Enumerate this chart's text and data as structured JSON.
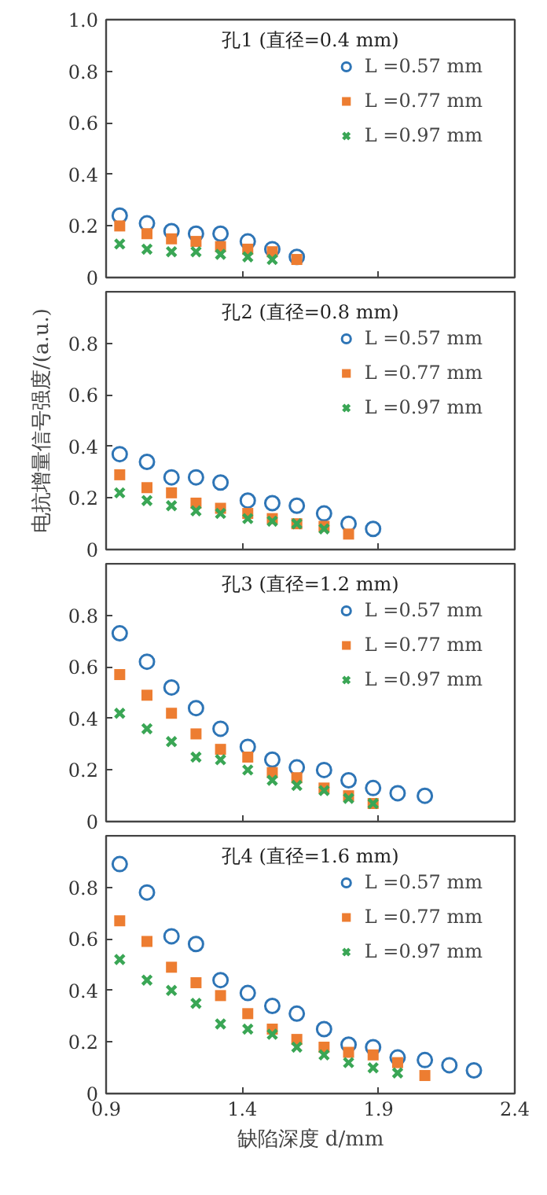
{
  "chart_data": [
    {
      "type": "scatter",
      "title": "孔1 (直径=0.4 mm)",
      "xlim": [
        0.9,
        2.4
      ],
      "xticks": [
        0.9,
        1.4,
        1.9,
        2.4
      ],
      "ylim": [
        0,
        1
      ],
      "yticks": [
        0,
        0.2,
        0.4,
        0.6,
        0.8,
        {
          "value": 1,
          "label": "1.0"
        }
      ],
      "tick_labels": "y",
      "legend": "top right",
      "grid": false,
      "series": [
        {
          "name": "L =0.57 mm",
          "color": "#2e75b6",
          "marker": "circle",
          "x": [
            0.95,
            1.05,
            1.14,
            1.23,
            1.32,
            1.42,
            1.51,
            1.6
          ],
          "values": [
            0.24,
            0.21,
            0.18,
            0.17,
            0.17,
            0.14,
            0.11,
            0.08
          ]
        },
        {
          "name": "L =0.77 mm",
          "color": "#ed7d31",
          "marker": "square",
          "x": [
            0.95,
            1.05,
            1.14,
            1.23,
            1.32,
            1.42,
            1.51,
            1.6
          ],
          "values": [
            0.2,
            0.17,
            0.15,
            0.14,
            0.12,
            0.11,
            0.1,
            0.07
          ]
        },
        {
          "name": "L =0.97 mm",
          "color": "#3aa655",
          "marker": "cross",
          "x": [
            0.95,
            1.05,
            1.14,
            1.23,
            1.32,
            1.42,
            1.51
          ],
          "values": [
            0.13,
            0.11,
            0.1,
            0.1,
            0.09,
            0.08,
            0.07
          ]
        }
      ]
    },
    {
      "type": "scatter",
      "title": "孔2 (直径=0.8 mm)",
      "ylabel": "电抗增量信号强度/(a.u.)",
      "xlim": [
        0.9,
        2.4
      ],
      "xticks": [
        0.9,
        1.4,
        1.9,
        2.4
      ],
      "ylim": [
        0,
        1
      ],
      "yticks": [
        0,
        0.2,
        0.4,
        0.6,
        0.8
      ],
      "tick_labels": "y",
      "legend": "top right",
      "grid": false,
      "series": [
        {
          "name": "L =0.57 mm",
          "color": "#2e75b6",
          "marker": "circle",
          "x": [
            0.95,
            1.05,
            1.14,
            1.23,
            1.32,
            1.42,
            1.51,
            1.6,
            1.7,
            1.79,
            1.88
          ],
          "values": [
            0.37,
            0.34,
            0.28,
            0.28,
            0.26,
            0.19,
            0.18,
            0.17,
            0.14,
            0.1,
            0.08
          ]
        },
        {
          "name": "L =0.77 mm",
          "color": "#ed7d31",
          "marker": "square",
          "x": [
            0.95,
            1.05,
            1.14,
            1.23,
            1.32,
            1.42,
            1.51,
            1.6,
            1.7,
            1.79
          ],
          "values": [
            0.29,
            0.24,
            0.22,
            0.18,
            0.16,
            0.14,
            0.12,
            0.1,
            0.09,
            0.06
          ]
        },
        {
          "name": "L =0.97 mm",
          "color": "#3aa655",
          "marker": "cross",
          "x": [
            0.95,
            1.05,
            1.14,
            1.23,
            1.32,
            1.42,
            1.51,
            1.6,
            1.7
          ],
          "values": [
            0.22,
            0.19,
            0.17,
            0.15,
            0.14,
            0.12,
            0.11,
            0.1,
            0.08
          ]
        }
      ]
    },
    {
      "type": "scatter",
      "title": "孔3 (直径=1.2 mm)",
      "xlim": [
        0.9,
        2.4
      ],
      "xticks": [
        0.9,
        1.4,
        1.9,
        2.4
      ],
      "ylim": [
        0,
        1
      ],
      "yticks": [
        0,
        0.2,
        0.4,
        0.6,
        0.8
      ],
      "tick_labels": "y",
      "legend": "top right",
      "grid": false,
      "series": [
        {
          "name": "L =0.57 mm",
          "color": "#2e75b6",
          "marker": "circle",
          "x": [
            0.95,
            1.05,
            1.14,
            1.23,
            1.32,
            1.42,
            1.51,
            1.6,
            1.7,
            1.79,
            1.88,
            1.97,
            2.07
          ],
          "values": [
            0.73,
            0.62,
            0.52,
            0.44,
            0.36,
            0.29,
            0.24,
            0.21,
            0.2,
            0.16,
            0.13,
            0.11,
            0.1
          ]
        },
        {
          "name": "L =0.77 mm",
          "color": "#ed7d31",
          "marker": "square",
          "x": [
            0.95,
            1.05,
            1.14,
            1.23,
            1.32,
            1.42,
            1.51,
            1.6,
            1.7,
            1.79,
            1.88
          ],
          "values": [
            0.57,
            0.49,
            0.42,
            0.34,
            0.28,
            0.25,
            0.19,
            0.17,
            0.13,
            0.1,
            0.07
          ]
        },
        {
          "name": "L =0.97 mm",
          "color": "#3aa655",
          "marker": "cross",
          "x": [
            0.95,
            1.05,
            1.14,
            1.23,
            1.32,
            1.42,
            1.51,
            1.6,
            1.7,
            1.79,
            1.88
          ],
          "values": [
            0.42,
            0.36,
            0.31,
            0.25,
            0.24,
            0.2,
            0.16,
            0.14,
            0.12,
            0.09,
            0.07
          ]
        }
      ]
    },
    {
      "type": "scatter",
      "title": "孔4 (直径=1.6 mm)",
      "xlabel": "缺陷深度 d/mm",
      "xlim": [
        0.9,
        2.4
      ],
      "xticks": [
        0.9,
        1.4,
        1.9,
        2.4
      ],
      "ylim": [
        0,
        1
      ],
      "yticks": [
        0,
        0.2,
        0.4,
        0.6,
        0.8
      ],
      "legend": "top right",
      "grid": false,
      "series": [
        {
          "name": "L =0.57 mm",
          "color": "#2e75b6",
          "marker": "circle",
          "x": [
            0.95,
            1.05,
            1.14,
            1.23,
            1.32,
            1.42,
            1.51,
            1.6,
            1.7,
            1.79,
            1.88,
            1.97,
            2.07,
            2.16,
            2.25
          ],
          "values": [
            0.89,
            0.78,
            0.61,
            0.58,
            0.44,
            0.39,
            0.34,
            0.31,
            0.25,
            0.19,
            0.18,
            0.14,
            0.13,
            0.11,
            0.09
          ]
        },
        {
          "name": "L =0.77 mm",
          "color": "#ed7d31",
          "marker": "square",
          "x": [
            0.95,
            1.05,
            1.14,
            1.23,
            1.32,
            1.42,
            1.51,
            1.6,
            1.7,
            1.79,
            1.88,
            1.97,
            2.07
          ],
          "values": [
            0.67,
            0.59,
            0.49,
            0.43,
            0.38,
            0.31,
            0.25,
            0.21,
            0.18,
            0.16,
            0.15,
            0.12,
            0.07
          ]
        },
        {
          "name": "L =0.97 mm",
          "color": "#3aa655",
          "marker": "cross",
          "x": [
            0.95,
            1.05,
            1.14,
            1.23,
            1.32,
            1.42,
            1.51,
            1.6,
            1.7,
            1.79,
            1.88,
            1.97
          ],
          "values": [
            0.52,
            0.44,
            0.4,
            0.35,
            0.27,
            0.25,
            0.23,
            0.18,
            0.15,
            0.12,
            0.1,
            0.08
          ]
        }
      ]
    }
  ]
}
